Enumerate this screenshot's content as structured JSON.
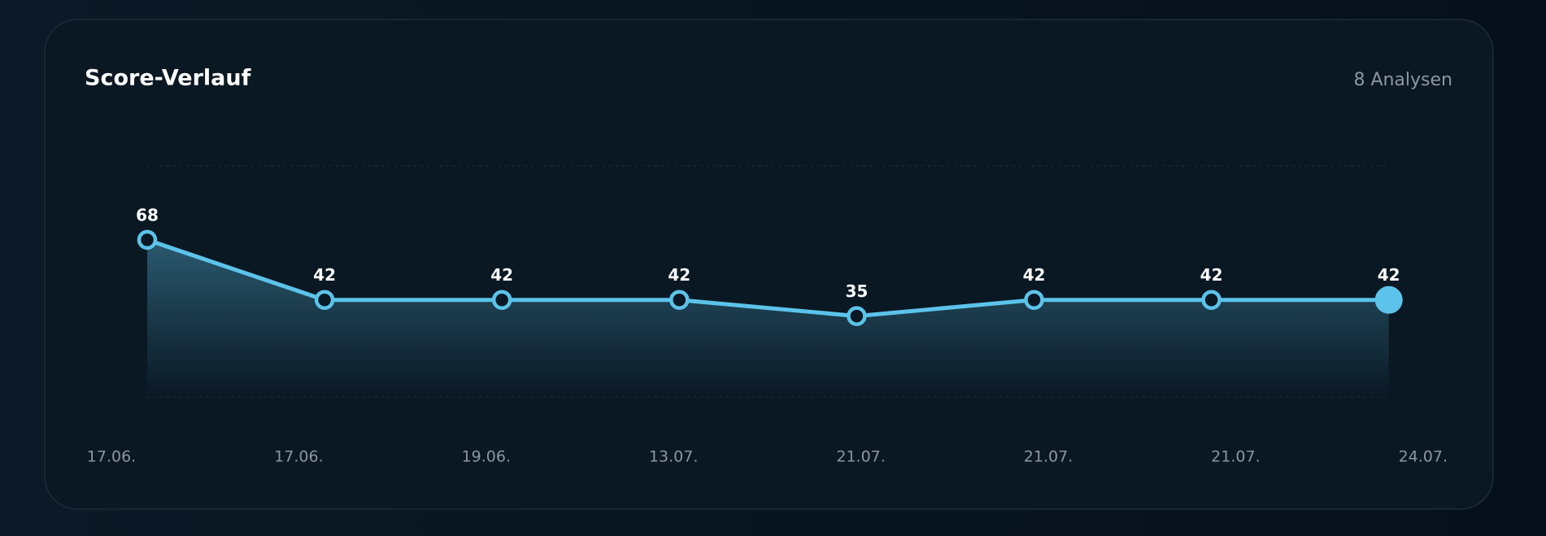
{
  "chart_data": {
    "type": "line",
    "title": "Score-Verlauf",
    "subtitle": "8 Analysen",
    "categories": [
      "17.06.",
      "17.06.",
      "19.06.",
      "13.07.",
      "21.07.",
      "21.07.",
      "21.07.",
      "24.07."
    ],
    "values": [
      68,
      42,
      42,
      42,
      35,
      42,
      42,
      42
    ],
    "color": "#5cc3ea",
    "ylim": [
      0,
      100
    ],
    "grid": true
  }
}
